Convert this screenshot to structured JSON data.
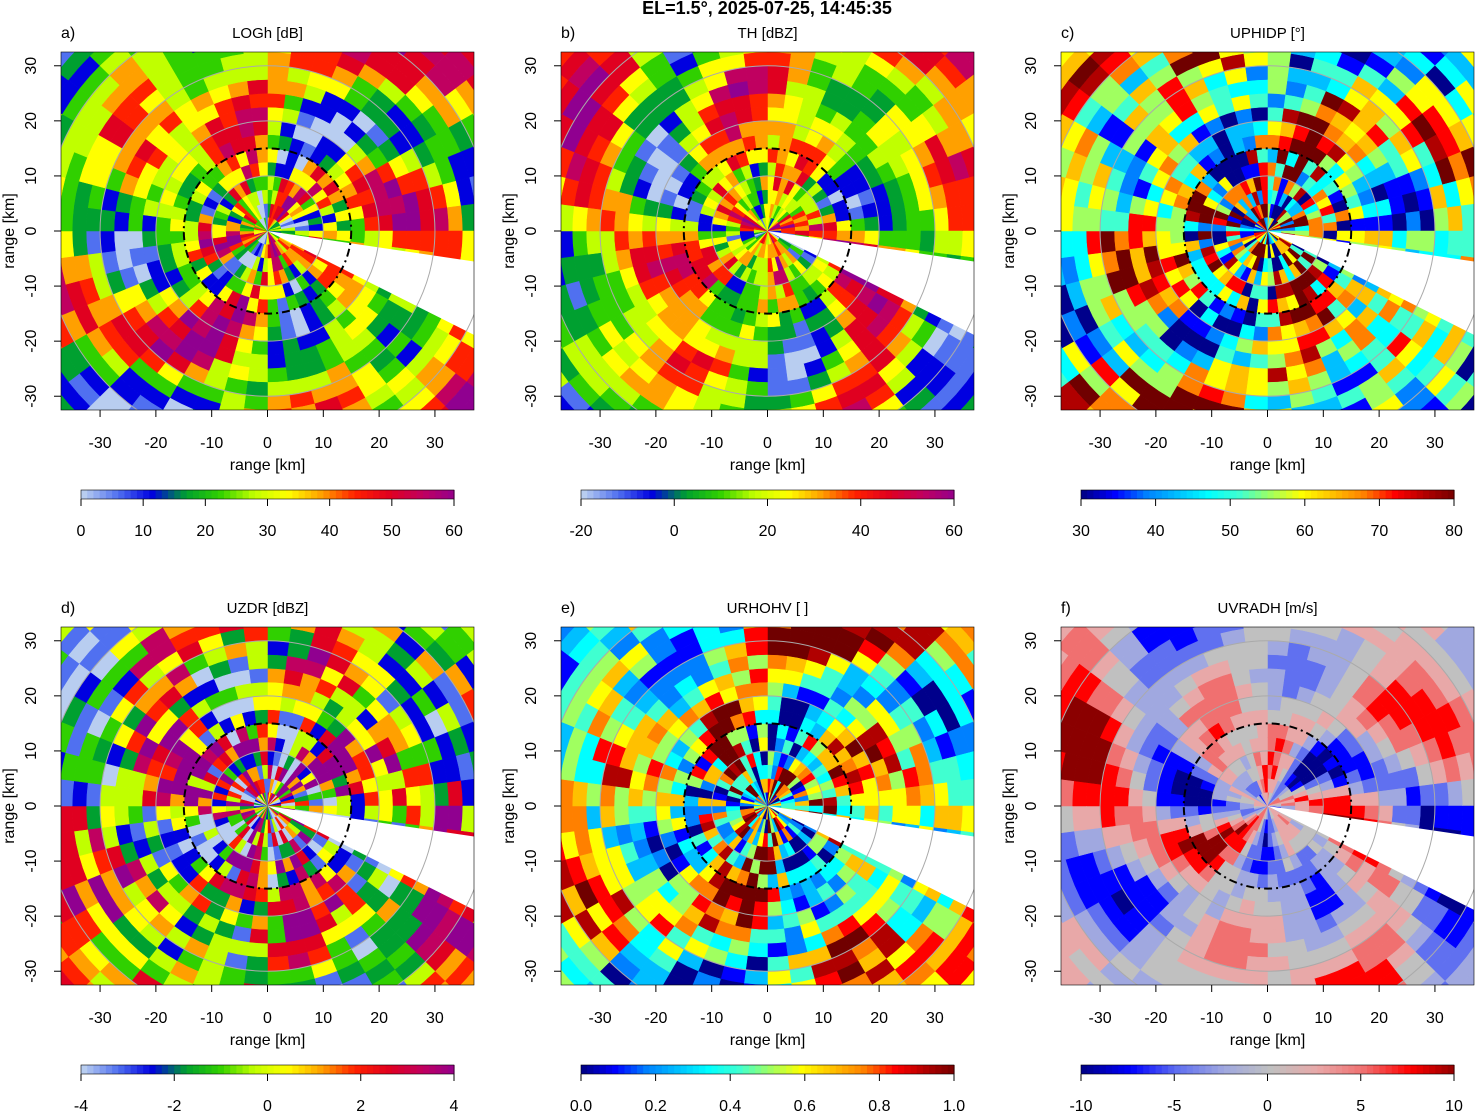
{
  "title": "EL=1.5°, 2025-07-25, 14:45:35",
  "chart_data": [
    {
      "type": "ppi",
      "label": "a)",
      "title": "LOGh [dB]",
      "xlabel": "range [km]",
      "ylabel": "range [km]",
      "xlim": [
        -37,
        37
      ],
      "ylim": [
        -32.5,
        32.5
      ],
      "xticks": [
        -30,
        -20,
        -10,
        0,
        10,
        20,
        30
      ],
      "yticks": [
        -30,
        -20,
        -10,
        0,
        10,
        20,
        30
      ],
      "range_rings": [
        10,
        20,
        30,
        40
      ],
      "dashed_ring": 15,
      "blocked_azimuth": [
        98.5,
        117
      ],
      "colorbar": {
        "colors": [
          "#b8cdf0",
          "#5070f0",
          "#0000e0",
          "#00a030",
          "#30d000",
          "#c0ff00",
          "#ffff00",
          "#ffa000",
          "#ff2000",
          "#e00020",
          "#c00060",
          "#900090"
        ],
        "lim": [
          0,
          60
        ],
        "ticks": [
          0,
          10,
          20,
          30,
          40,
          50,
          60
        ]
      }
    },
    {
      "type": "ppi",
      "label": "b)",
      "title": "TH [dBZ]",
      "xlabel": "range [km]",
      "ylabel": "range [km]",
      "xlim": [
        -37,
        37
      ],
      "ylim": [
        -32.5,
        32.5
      ],
      "xticks": [
        -30,
        -20,
        -10,
        0,
        10,
        20,
        30
      ],
      "yticks": [
        -30,
        -20,
        -10,
        0,
        10,
        20,
        30
      ],
      "range_rings": [
        10,
        20,
        30,
        40
      ],
      "dashed_ring": 15,
      "blocked_azimuth": [
        98.5,
        117
      ],
      "colorbar": {
        "colors": [
          "#b8cdf0",
          "#5070f0",
          "#0000e0",
          "#00a030",
          "#30d000",
          "#c0ff00",
          "#ffff00",
          "#ffa000",
          "#ff2000",
          "#e00020",
          "#c00060",
          "#900090"
        ],
        "lim": [
          -20,
          60
        ],
        "ticks": [
          -20,
          0,
          20,
          40,
          60
        ]
      }
    },
    {
      "type": "ppi",
      "label": "c)",
      "title": "UPHIDP [°]",
      "xlabel": "range [km]",
      "ylabel": "range [km]",
      "xlim": [
        -37,
        37
      ],
      "ylim": [
        -32.5,
        32.5
      ],
      "xticks": [
        -30,
        -20,
        -10,
        0,
        10,
        20,
        30
      ],
      "yticks": [
        -30,
        -20,
        -10,
        0,
        10,
        20,
        30
      ],
      "range_rings": [
        10,
        20,
        30,
        40
      ],
      "dashed_ring": 15,
      "blocked_azimuth": [
        98.5,
        117
      ],
      "colorbar": {
        "colors": [
          "#00008b",
          "#0000ff",
          "#0080ff",
          "#00bfff",
          "#00ffff",
          "#40ffd0",
          "#a0ff60",
          "#ffff00",
          "#ffc000",
          "#ff8000",
          "#ff0000",
          "#b00000",
          "#700000"
        ],
        "lim": [
          30,
          80
        ],
        "ticks": [
          30,
          40,
          50,
          60,
          70,
          80
        ]
      }
    },
    {
      "type": "ppi",
      "label": "d)",
      "title": "UZDR [dBZ]",
      "xlabel": "range [km]",
      "ylabel": "range [km]",
      "xlim": [
        -37,
        37
      ],
      "ylim": [
        -32.5,
        32.5
      ],
      "xticks": [
        -30,
        -20,
        -10,
        0,
        10,
        20,
        30
      ],
      "yticks": [
        -30,
        -20,
        -10,
        0,
        10,
        20,
        30
      ],
      "range_rings": [
        10,
        20,
        30,
        40
      ],
      "dashed_ring": 15,
      "blocked_azimuth": [
        98.5,
        117
      ],
      "colorbar": {
        "colors": [
          "#b8cdf0",
          "#5070f0",
          "#0000e0",
          "#00a030",
          "#30d000",
          "#c0ff00",
          "#ffff00",
          "#ffa000",
          "#ff2000",
          "#e00020",
          "#c00060",
          "#900090"
        ],
        "lim": [
          -4,
          4
        ],
        "ticks": [
          -4,
          -2,
          0,
          2,
          4
        ]
      }
    },
    {
      "type": "ppi",
      "label": "e)",
      "title": "URHOHV [ ]",
      "xlabel": "range [km]",
      "ylabel": "range [km]",
      "xlim": [
        -37,
        37
      ],
      "ylim": [
        -32.5,
        32.5
      ],
      "xticks": [
        -30,
        -20,
        -10,
        0,
        10,
        20,
        30
      ],
      "yticks": [
        -30,
        -20,
        -10,
        0,
        10,
        20,
        30
      ],
      "range_rings": [
        10,
        20,
        30,
        40
      ],
      "dashed_ring": 15,
      "blocked_azimuth": [
        98.5,
        117
      ],
      "colorbar": {
        "colors": [
          "#00008b",
          "#0000ff",
          "#0080ff",
          "#00bfff",
          "#00ffff",
          "#40ffd0",
          "#a0ff60",
          "#ffff00",
          "#ffc000",
          "#ff8000",
          "#ff0000",
          "#b00000",
          "#700000"
        ],
        "lim": [
          0,
          1
        ],
        "ticks": [
          {
            "value": 0,
            "label": "0.0"
          },
          {
            "value": 0.2,
            "label": "0.2"
          },
          {
            "value": 0.4,
            "label": "0.4"
          },
          {
            "value": 0.6,
            "label": "0.6"
          },
          {
            "value": 0.8,
            "label": "0.8"
          },
          {
            "value": 1,
            "label": "1.0"
          }
        ]
      }
    },
    {
      "type": "ppi",
      "label": "f)",
      "title": "UVRADH [m/s]",
      "xlabel": "range [km]",
      "ylabel": "range [km]",
      "xlim": [
        -37,
        37
      ],
      "ylim": [
        -32.5,
        32.5
      ],
      "xticks": [
        -30,
        -20,
        -10,
        0,
        10,
        20,
        30
      ],
      "yticks": [
        -30,
        -20,
        -10,
        0,
        10,
        20,
        30
      ],
      "range_rings": [
        10,
        20,
        30,
        40
      ],
      "dashed_ring": 15,
      "blocked_azimuth": [
        98.5,
        117
      ],
      "colorbar": {
        "colors": [
          "#00008b",
          "#0000ff",
          "#6070f0",
          "#a0a8e0",
          "#c0c0c0",
          "#e8a8a8",
          "#f07070",
          "#ff0000",
          "#8b0000"
        ],
        "lim": [
          -10,
          10
        ],
        "ticks": [
          -10,
          -5,
          0,
          5,
          10
        ]
      }
    }
  ]
}
